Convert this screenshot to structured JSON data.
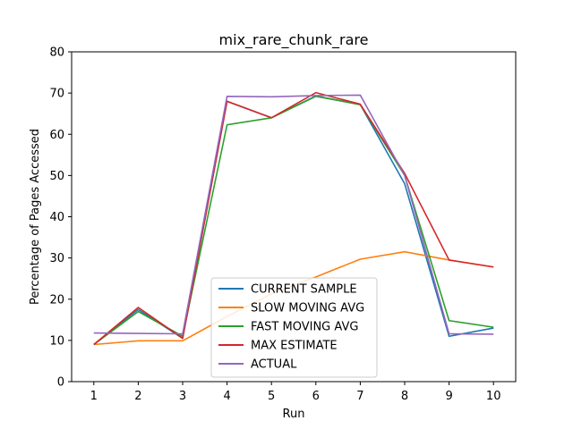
{
  "chart_data": {
    "type": "line",
    "title": "mix_rare_chunk_rare",
    "xlabel": "Run",
    "ylabel": "Percentage of Pages Accessed",
    "x": [
      1,
      2,
      3,
      4,
      5,
      6,
      7,
      8,
      9,
      10
    ],
    "xticks": [
      "1",
      "2",
      "3",
      "4",
      "5",
      "6",
      "7",
      "8",
      "9",
      "10"
    ],
    "xlim": [
      0.5,
      10.5
    ],
    "ylim": [
      0,
      80
    ],
    "yticks": [
      "0",
      "10",
      "20",
      "30",
      "40",
      "50",
      "60",
      "70",
      "80"
    ],
    "grid": false,
    "legend_position": "lower-center",
    "series": [
      {
        "name": "CURRENT SAMPLE",
        "color": "#1f77b4",
        "values": [
          9.0,
          17.5,
          10.5,
          68.0,
          64.0,
          69.3,
          67.2,
          48.0,
          11.0,
          13.0
        ]
      },
      {
        "name": "SLOW MOVING AVG",
        "color": "#ff7f0e",
        "values": [
          9.0,
          9.9,
          9.9,
          15.8,
          21.3,
          25.4,
          29.7,
          31.5,
          29.5,
          27.8
        ]
      },
      {
        "name": "FAST MOVING AVG",
        "color": "#2ca02c",
        "values": [
          9.0,
          17.0,
          11.0,
          62.3,
          64.0,
          69.2,
          67.2,
          50.0,
          14.8,
          13.2
        ]
      },
      {
        "name": "MAX ESTIMATE",
        "color": "#d62728",
        "values": [
          9.0,
          18.0,
          10.5,
          68.0,
          64.0,
          70.1,
          67.3,
          50.5,
          29.5,
          27.8
        ]
      },
      {
        "name": "ACTUAL",
        "color": "#9467bd",
        "values": [
          11.8,
          11.7,
          11.6,
          69.2,
          69.1,
          69.4,
          69.5,
          50.0,
          11.6,
          11.5
        ]
      }
    ]
  }
}
